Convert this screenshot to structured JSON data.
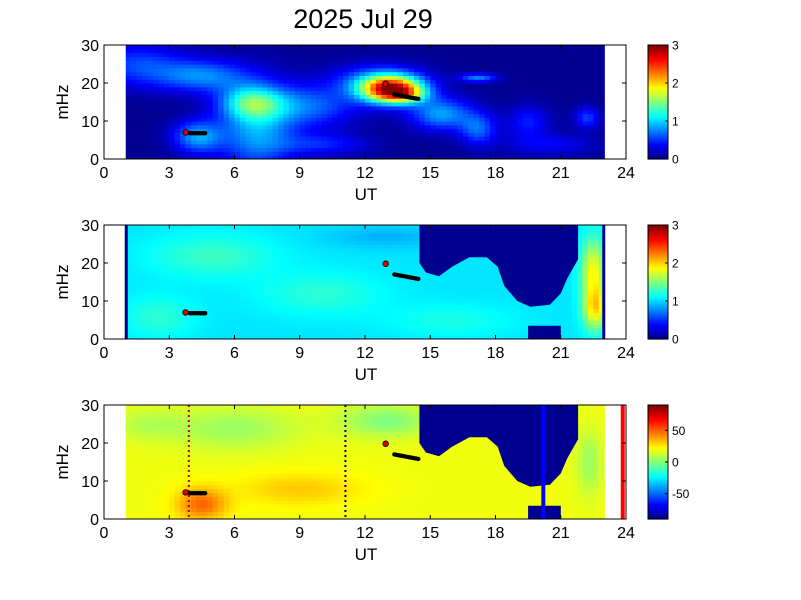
{
  "figure": {
    "title": "2025 Jul 29"
  },
  "chart_data": [
    {
      "type": "heatmap",
      "xlabel": "UT",
      "ylabel": "mHz",
      "xlim": [
        0,
        24
      ],
      "ylim": [
        0,
        30
      ],
      "xticks": [
        "0",
        "3",
        "6",
        "9",
        "12",
        "15",
        "18",
        "21",
        "24"
      ],
      "yticks": [
        "0",
        "10",
        "20",
        "30"
      ],
      "data_x_range": [
        1,
        23
      ],
      "colorbar": {
        "min": 0,
        "max": 3,
        "ticks": [
          "0",
          "1",
          "2",
          "3"
        ]
      },
      "background_value": 0.05,
      "blobs": [
        {
          "x": 1.5,
          "y": 25,
          "sx": 1.5,
          "sy": 4,
          "v": 0.5
        },
        {
          "x": 4.5,
          "y": 22,
          "sx": 1.5,
          "sy": 3,
          "v": 0.7
        },
        {
          "x": 7,
          "y": 8,
          "sx": 1.2,
          "sy": 8,
          "v": 0.8
        },
        {
          "x": 9.5,
          "y": 14,
          "sx": 1.5,
          "sy": 4,
          "v": 0.6
        },
        {
          "x": 6.8,
          "y": 15,
          "sx": 1,
          "sy": 3,
          "v": 0.9
        },
        {
          "x": 4.3,
          "y": 6,
          "sx": 0.8,
          "sy": 3,
          "v": 0.8
        },
        {
          "x": 13.2,
          "y": 18.5,
          "sx": 1.0,
          "sy": 2.5,
          "v": 2.6
        },
        {
          "x": 13.8,
          "y": 17,
          "sx": 0.7,
          "sy": 1.5,
          "v": 0.7
        },
        {
          "x": 12.5,
          "y": 21,
          "sx": 1.5,
          "sy": 3,
          "v": 0.5
        },
        {
          "x": 15.5,
          "y": 12,
          "sx": 1.0,
          "sy": 3,
          "v": 0.8
        },
        {
          "x": 17.2,
          "y": 8,
          "sx": 0.6,
          "sy": 3,
          "v": 0.6
        },
        {
          "x": 19.5,
          "y": 10,
          "sx": 0.7,
          "sy": 3,
          "v": 0.4
        },
        {
          "x": 17.2,
          "y": 21.5,
          "sx": 0.6,
          "sy": 0.8,
          "v": 0.7
        },
        {
          "x": 22.2,
          "y": 11,
          "sx": 0.4,
          "sy": 2,
          "v": 0.5
        },
        {
          "x": 10,
          "y": 4,
          "sx": 1.5,
          "sy": 2,
          "v": 0.4
        },
        {
          "x": 20.5,
          "y": 4,
          "sx": 1.5,
          "sy": 2,
          "v": 0.3
        }
      ],
      "masks": [],
      "vlines": [],
      "markers": {
        "red": [
          {
            "x": 3.75,
            "y": 7
          },
          {
            "x": 12.95,
            "y": 19.8
          }
        ],
        "black_tracks": [
          {
            "x0": 3.95,
            "x1": 4.65,
            "y0": 6.8,
            "y1": 6.8,
            "n": 10
          },
          {
            "x0": 13.35,
            "x1": 14.45,
            "y0": 17.0,
            "y1": 15.8,
            "n": 13
          }
        ]
      }
    },
    {
      "type": "heatmap",
      "xlabel": "UT",
      "ylabel": "mHz",
      "xlim": [
        0,
        24
      ],
      "ylim": [
        0,
        30
      ],
      "xticks": [
        "0",
        "3",
        "6",
        "9",
        "12",
        "15",
        "18",
        "21",
        "24"
      ],
      "yticks": [
        "0",
        "10",
        "20",
        "30"
      ],
      "data_x_range": [
        1,
        23
      ],
      "colorbar": {
        "min": 0,
        "max": 3,
        "ticks": [
          "0",
          "1",
          "2",
          "3"
        ]
      },
      "background_value": 1.05,
      "blobs": [
        {
          "x": 5,
          "y": 22,
          "sx": 2,
          "sy": 4,
          "v": 0.25
        },
        {
          "x": 10,
          "y": 12,
          "sx": 2,
          "sy": 4,
          "v": 0.2
        },
        {
          "x": 2.5,
          "y": 6,
          "sx": 1.2,
          "sy": 4,
          "v": 0.2
        },
        {
          "x": 13,
          "y": 27,
          "sx": 2,
          "sy": 2,
          "v": -0.15
        },
        {
          "x": 22.5,
          "y": 18,
          "sx": 0.4,
          "sy": 6,
          "v": 0.8
        },
        {
          "x": 22.6,
          "y": 8,
          "sx": 0.4,
          "sy": 4,
          "v": 0.8
        },
        {
          "x": 16,
          "y": 5,
          "sx": 2,
          "sy": 3,
          "v": 0.15
        }
      ],
      "masks": [
        {
          "x0": 14.5,
          "x1": 21.5,
          "y0": 30,
          "y1": 30,
          "boundary": [
            [
              14.5,
              0
            ],
            [
              14.5,
              30
            ]
          ]
        }
      ],
      "mask_polygons": [
        [
          [
            14.5,
            30
          ],
          [
            21.8,
            30
          ],
          [
            21.8,
            21
          ],
          [
            21.3,
            16
          ],
          [
            21.0,
            12
          ],
          [
            20.5,
            9
          ],
          [
            19.6,
            8.5
          ],
          [
            19.0,
            10
          ],
          [
            18.4,
            14
          ],
          [
            18.1,
            19
          ],
          [
            17.6,
            21.5
          ],
          [
            16.8,
            21.5
          ],
          [
            16.0,
            19
          ],
          [
            15.4,
            16.5
          ],
          [
            14.8,
            17.5
          ],
          [
            14.5,
            20
          ]
        ],
        [
          [
            19.5,
            0
          ],
          [
            21.0,
            0
          ],
          [
            21.0,
            3.5
          ],
          [
            19.5,
            3.5
          ]
        ]
      ],
      "vlines": [],
      "markers": {
        "red": [
          {
            "x": 3.75,
            "y": 7
          },
          {
            "x": 12.95,
            "y": 19.8
          }
        ],
        "black_tracks": [
          {
            "x0": 3.95,
            "x1": 4.65,
            "y0": 6.8,
            "y1": 6.8,
            "n": 10
          },
          {
            "x0": 13.35,
            "x1": 14.45,
            "y0": 17.0,
            "y1": 15.8,
            "n": 13
          }
        ]
      }
    },
    {
      "type": "heatmap",
      "xlabel": "UT",
      "ylabel": "mHz",
      "xlim": [
        0,
        24
      ],
      "ylim": [
        0,
        30
      ],
      "xticks": [
        "0",
        "3",
        "6",
        "9",
        "12",
        "15",
        "18",
        "21",
        "24"
      ],
      "yticks": [
        "0",
        "10",
        "20",
        "30"
      ],
      "data_x_range": [
        1,
        23
      ],
      "colorbar": {
        "min": -90,
        "max": 90,
        "ticks": [
          "50",
          "0",
          "-50"
        ],
        "tick_values": [
          50,
          0,
          -50
        ]
      },
      "background_value": 20,
      "blobs": [
        {
          "x": 4.5,
          "y": 4,
          "sx": 0.8,
          "sy": 3,
          "v": 30
        },
        {
          "x": 6,
          "y": 24,
          "sx": 2,
          "sy": 4,
          "v": -15
        },
        {
          "x": 9,
          "y": 8,
          "sx": 2,
          "sy": 3,
          "v": 12
        },
        {
          "x": 13,
          "y": 26,
          "sx": 1.5,
          "sy": 3,
          "v": -20
        },
        {
          "x": 2,
          "y": 25,
          "sx": 1.2,
          "sy": 3,
          "v": -10
        },
        {
          "x": 22.3,
          "y": 15,
          "sx": 0.4,
          "sy": 6,
          "v": -15
        }
      ],
      "mask_polygons": [
        [
          [
            14.5,
            30
          ],
          [
            21.8,
            30
          ],
          [
            21.8,
            21
          ],
          [
            21.3,
            16
          ],
          [
            21.0,
            12
          ],
          [
            20.5,
            9
          ],
          [
            19.6,
            8.5
          ],
          [
            19.0,
            10
          ],
          [
            18.4,
            14
          ],
          [
            18.1,
            19
          ],
          [
            17.6,
            21.5
          ],
          [
            16.8,
            21.5
          ],
          [
            16.0,
            19
          ],
          [
            15.4,
            16.5
          ],
          [
            14.8,
            17.5
          ],
          [
            14.5,
            20
          ]
        ],
        [
          [
            19.5,
            0
          ],
          [
            21.0,
            0
          ],
          [
            21.0,
            3.5
          ],
          [
            19.5,
            3.5
          ]
        ]
      ],
      "vlines": [
        {
          "x": 3.9,
          "style": "dotted",
          "color": "#b00000"
        },
        {
          "x": 11.1,
          "style": "dotted",
          "color": "#000080"
        },
        {
          "x": 20.2,
          "style": "solid",
          "color": "#0000ff"
        },
        {
          "x": 23.85,
          "style": "solid",
          "color": "#ff0000"
        }
      ],
      "markers": {
        "red": [
          {
            "x": 3.75,
            "y": 7
          },
          {
            "x": 12.95,
            "y": 19.8
          }
        ],
        "black_tracks": [
          {
            "x0": 3.95,
            "x1": 4.65,
            "y0": 6.8,
            "y1": 6.8,
            "n": 10
          },
          {
            "x0": 13.35,
            "x1": 14.45,
            "y0": 17.0,
            "y1": 15.8,
            "n": 13
          }
        ]
      }
    }
  ]
}
